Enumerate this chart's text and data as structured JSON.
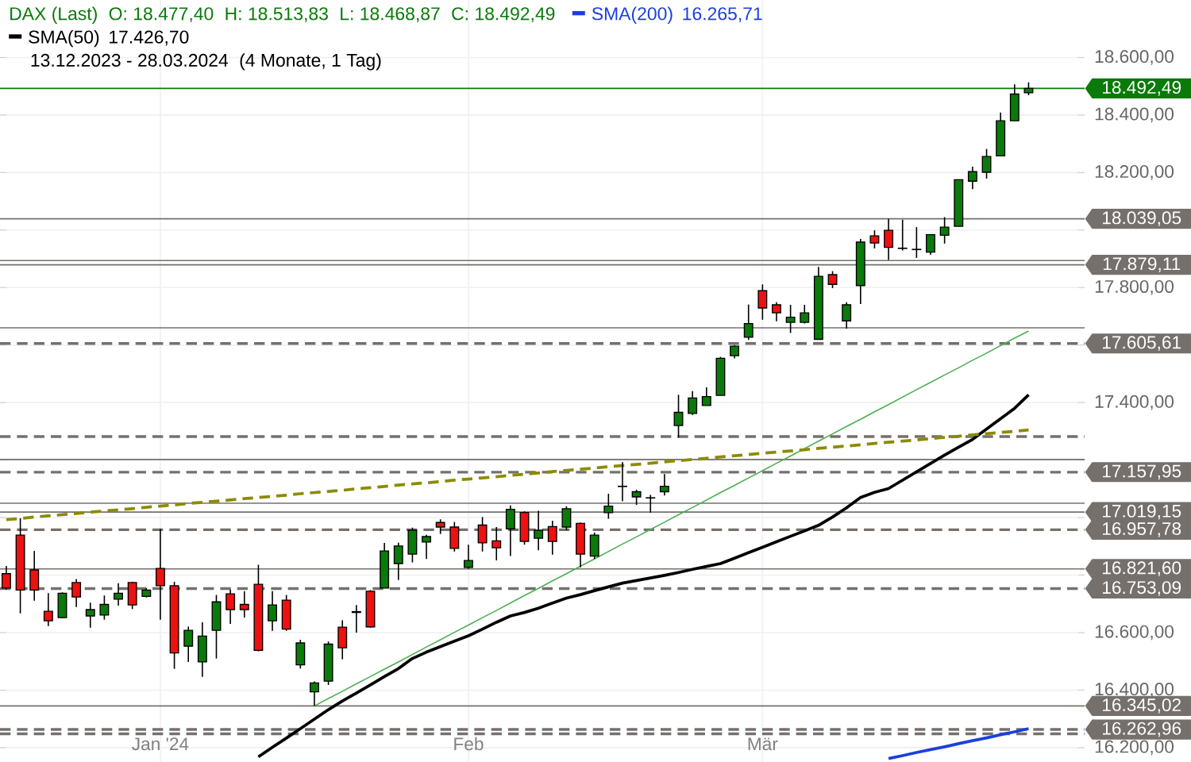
{
  "chart_data": {
    "type": "candlestick",
    "title": "DAX (Last)",
    "categories": [
      null,
      null,
      null,
      null,
      null,
      null,
      null,
      null,
      null,
      null,
      null,
      "Jan '24",
      null,
      null,
      null,
      null,
      null,
      null,
      null,
      null,
      null,
      null,
      null,
      null,
      null,
      null,
      null,
      null,
      null,
      null,
      null,
      null,
      null,
      "Feb",
      null,
      null,
      null,
      null,
      null,
      null,
      null,
      null,
      null,
      null,
      null,
      null,
      null,
      null,
      null,
      null,
      null,
      null,
      null,
      null,
      "Mär",
      null,
      null,
      null,
      null,
      null,
      null,
      null,
      null,
      null,
      null,
      null,
      null,
      null,
      null,
      null,
      null,
      null,
      null,
      null
    ],
    "ohlc": [
      [
        16805,
        16832,
        16750,
        16755
      ],
      [
        16939,
        16998,
        16667,
        16748
      ],
      [
        16818,
        16884,
        16711,
        16748
      ],
      [
        16674,
        16737,
        16623,
        16641
      ],
      [
        16652,
        16740,
        16650,
        16737
      ],
      [
        16774,
        16786,
        16689,
        16724
      ],
      [
        16658,
        16704,
        16617,
        16680
      ],
      [
        16661,
        16729,
        16645,
        16698
      ],
      [
        16716,
        16772,
        16694,
        16737
      ],
      [
        16774,
        16777,
        16682,
        16696
      ],
      [
        16726,
        16755,
        16722,
        16748
      ],
      [
        16823,
        16961,
        16645,
        16763
      ],
      [
        16763,
        16777,
        16474,
        16529
      ],
      [
        16553,
        16621,
        16498,
        16608
      ],
      [
        16498,
        16636,
        16446,
        16588
      ],
      [
        16608,
        16731,
        16510,
        16707
      ],
      [
        16735,
        16750,
        16630,
        16680
      ],
      [
        16698,
        16744,
        16652,
        16680
      ],
      [
        16768,
        16836,
        16535,
        16538
      ],
      [
        16641,
        16744,
        16606,
        16696
      ],
      [
        16713,
        16731,
        16606,
        16612
      ],
      [
        16488,
        16575,
        16475,
        16564
      ],
      [
        16394,
        16430,
        16345,
        16425
      ],
      [
        16431,
        16569,
        16418,
        16560
      ],
      [
        16619,
        16643,
        16507,
        16547
      ],
      [
        16670,
        16696,
        16600,
        16673
      ],
      [
        16744,
        16748,
        16617,
        16620
      ],
      [
        16755,
        16912,
        16755,
        16884
      ],
      [
        16840,
        16913,
        16783,
        16901
      ],
      [
        16873,
        16965,
        16844,
        16956
      ],
      [
        16915,
        16940,
        16856,
        16934
      ],
      [
        16983,
        16994,
        16943,
        16967
      ],
      [
        16967,
        16985,
        16882,
        16893
      ],
      [
        16827,
        16906,
        16822,
        16851
      ],
      [
        16974,
        17002,
        16882,
        16912
      ],
      [
        16919,
        16967,
        16851,
        16895
      ],
      [
        16961,
        17042,
        16866,
        17029
      ],
      [
        17018,
        17022,
        16906,
        16917
      ],
      [
        16928,
        17024,
        16886,
        16956
      ],
      [
        16969,
        16989,
        16871,
        16917
      ],
      [
        16967,
        17039,
        16956,
        17031
      ],
      [
        16980,
        16983,
        16827,
        16873
      ],
      [
        16866,
        16948,
        16856,
        16939
      ],
      [
        17017,
        17083,
        16996,
        17040
      ],
      [
        17109,
        17193,
        17057,
        17108
      ],
      [
        17072,
        17097,
        17044,
        17090
      ],
      [
        17068,
        17079,
        17017,
        17069
      ],
      [
        17090,
        17151,
        17077,
        17109
      ],
      [
        17320,
        17427,
        17278,
        17366
      ],
      [
        17362,
        17440,
        17357,
        17416
      ],
      [
        17390,
        17453,
        17390,
        17421
      ],
      [
        17425,
        17559,
        17425,
        17554
      ],
      [
        17563,
        17600,
        17554,
        17596
      ],
      [
        17627,
        17741,
        17618,
        17675
      ],
      [
        17789,
        17811,
        17688,
        17729
      ],
      [
        17740,
        17749,
        17683,
        17712
      ],
      [
        17679,
        17740,
        17642,
        17697
      ],
      [
        17679,
        17740,
        17675,
        17712
      ],
      [
        17620,
        17872,
        17620,
        17839
      ],
      [
        17845,
        17857,
        17798,
        17811
      ],
      [
        17684,
        17749,
        17657,
        17740
      ],
      [
        17807,
        17969,
        17743,
        17958
      ],
      [
        17980,
        17999,
        17936,
        17955
      ],
      [
        17999,
        18039,
        17896,
        17940
      ],
      [
        17936,
        18036,
        17929,
        17937
      ],
      [
        17933,
        18010,
        17903,
        17932
      ],
      [
        17923,
        17984,
        17914,
        17984
      ],
      [
        17982,
        18045,
        17953,
        18010
      ],
      [
        18013,
        18175,
        18013,
        18175
      ],
      [
        18170,
        18220,
        18142,
        18203
      ],
      [
        18201,
        18282,
        18179,
        18256
      ],
      [
        18258,
        18409,
        18258,
        18380
      ],
      [
        18380,
        18507,
        18380,
        18473
      ],
      [
        18477.4,
        18513.83,
        18468.87,
        18492.49
      ]
    ],
    "series": [
      {
        "name": "SMA(50)",
        "type": "line",
        "color": "#000000",
        "values": [
          null,
          null,
          null,
          null,
          null,
          null,
          null,
          null,
          null,
          null,
          null,
          null,
          null,
          null,
          null,
          null,
          null,
          null,
          16168,
          16201,
          16233,
          16266,
          16299,
          16332,
          16362,
          16390,
          16418,
          16447,
          16475,
          16510,
          16532,
          16551,
          16570,
          16589,
          16612,
          16636,
          16658,
          16670,
          16685,
          16703,
          16720,
          16732,
          16746,
          16759,
          16772,
          16781,
          16790,
          16799,
          16809,
          16820,
          16830,
          16840,
          16859,
          16878,
          16897,
          16916,
          16935,
          16954,
          16973,
          17002,
          17034,
          17070,
          17088,
          17101,
          17130,
          17159,
          17188,
          17217,
          17245,
          17272,
          17308,
          17344,
          17380,
          17427
        ]
      },
      {
        "name": "SMA(200)",
        "type": "line",
        "color": "#1a3fe0",
        "values": [
          null,
          null,
          null,
          null,
          null,
          null,
          null,
          null,
          null,
          null,
          null,
          null,
          null,
          null,
          null,
          null,
          null,
          null,
          null,
          null,
          null,
          null,
          null,
          null,
          null,
          null,
          null,
          null,
          null,
          null,
          null,
          null,
          null,
          null,
          null,
          null,
          null,
          null,
          null,
          null,
          null,
          null,
          null,
          null,
          null,
          null,
          null,
          null,
          null,
          null,
          null,
          null,
          null,
          null,
          null,
          null,
          null,
          null,
          null,
          null,
          null,
          null,
          null,
          16162,
          16172,
          16183,
          16193,
          16203,
          16214,
          16224,
          16234,
          16245,
          16255,
          16266
        ]
      },
      {
        "type": "line",
        "color": "#4caf50",
        "values": [
          null,
          null,
          null,
          null,
          null,
          null,
          null,
          null,
          null,
          null,
          null,
          null,
          null,
          null,
          null,
          null,
          null,
          null,
          null,
          null,
          null,
          null,
          16345,
          16371,
          16396,
          16422,
          16447,
          16473,
          16498,
          16524,
          16550,
          16575,
          16601,
          16626,
          16652,
          16677,
          16703,
          16729,
          16754,
          16780,
          16805,
          16831,
          16856,
          16882,
          16908,
          16933,
          16959,
          16984,
          17010,
          17035,
          17061,
          17087,
          17112,
          17138,
          17163,
          17189,
          17214,
          17240,
          17266,
          17291,
          17317,
          17342,
          17368,
          17393,
          17419,
          17445,
          17470,
          17496,
          17521,
          17547,
          17572,
          17598,
          17624,
          17649
        ]
      },
      {
        "type": "line",
        "color": "#8b8b00",
        "line_style": "dashed",
        "values": [
          16993,
          16997,
          17002,
          17006,
          17010,
          17014,
          17019,
          17023,
          17027,
          17031,
          17036,
          17040,
          17044,
          17049,
          17053,
          17057,
          17061,
          17066,
          17070,
          17074,
          17078,
          17083,
          17087,
          17091,
          17095,
          17100,
          17104,
          17108,
          17113,
          17117,
          17121,
          17125,
          17130,
          17134,
          17138,
          17142,
          17147,
          17151,
          17155,
          17160,
          17164,
          17168,
          17172,
          17177,
          17181,
          17185,
          17189,
          17194,
          17198,
          17202,
          17206,
          17211,
          17215,
          17219,
          17224,
          17228,
          17232,
          17236,
          17241,
          17245,
          17249,
          17253,
          17258,
          17262,
          17266,
          17270,
          17275,
          17279,
          17283,
          17288,
          17292,
          17296,
          17300,
          17305
        ]
      }
    ],
    "ylim": [
      16150,
      18800
    ],
    "yticks": [
      {
        "value": 16200,
        "label": "16.200,00"
      },
      {
        "value": 16400,
        "label": "16.400,00"
      },
      {
        "value": 16600,
        "label": "16.600,00"
      },
      {
        "value": 16800,
        "label": null
      },
      {
        "value": 17000,
        "label": null
      },
      {
        "value": 17200,
        "label": null
      },
      {
        "value": 17400,
        "label": "17.400,00"
      },
      {
        "value": 17600,
        "label": null
      },
      {
        "value": 17800,
        "label": "17.800,00"
      },
      {
        "value": 18000,
        "label": null
      },
      {
        "value": 18200,
        "label": "18.200,00"
      },
      {
        "value": 18400,
        "label": "18.400,00"
      },
      {
        "value": 18600,
        "label": "18.600,00"
      }
    ],
    "grid": true,
    "legend": "top left",
    "ref_lines": [
      {
        "axis": "y",
        "value": 18492.49,
        "label": "18.492,49",
        "color": "#0a7a0a",
        "line_style": "solid"
      },
      {
        "axis": "y",
        "value": 18039.05,
        "label": "18.039,05",
        "color": "#75706c",
        "line_style": "solid"
      },
      {
        "axis": "y",
        "value": 17894,
        "label": null,
        "color": "#75706c",
        "line_style": "solid"
      },
      {
        "axis": "y",
        "value": 17879.11,
        "label": "17.879,11",
        "color": "#75706c",
        "line_style": "solid"
      },
      {
        "axis": "y",
        "value": 17660,
        "label": null,
        "color": "#75706c",
        "line_style": "solid"
      },
      {
        "axis": "y",
        "value": 17605.61,
        "label": "17.605,61",
        "color": "#75706c",
        "line_style": "dashed"
      },
      {
        "axis": "y",
        "value": 17282,
        "label": null,
        "color": "#75706c",
        "line_style": "dashed"
      },
      {
        "axis": "y",
        "value": 17202,
        "label": null,
        "color": "#75706c",
        "line_style": "solid"
      },
      {
        "axis": "y",
        "value": 17157.95,
        "label": "17.157,95",
        "color": "#75706c",
        "line_style": "dashed"
      },
      {
        "axis": "y",
        "value": 17050,
        "label": null,
        "color": "#75706c",
        "line_style": "solid"
      },
      {
        "axis": "y",
        "value": 17019.15,
        "label": "17.019,15",
        "color": "#75706c",
        "line_style": "solid"
      },
      {
        "axis": "y",
        "value": 16957.78,
        "label": "16.957,78",
        "color": "#75706c",
        "line_style": "dashed"
      },
      {
        "axis": "y",
        "value": 16821.6,
        "label": "16.821,60",
        "color": "#75706c",
        "line_style": "solid"
      },
      {
        "axis": "y",
        "value": 16753.09,
        "label": "16.753,09",
        "color": "#75706c",
        "line_style": "dashed"
      },
      {
        "axis": "y",
        "value": 16345.02,
        "label": "16.345,02",
        "color": "#75706c",
        "line_style": "solid"
      },
      {
        "axis": "y",
        "value": 16262.96,
        "label": "16.262,96",
        "color": "#75706c",
        "line_style": "dashed"
      },
      {
        "axis": "y",
        "value": 16248,
        "label": null,
        "color": "#75706c",
        "line_style": "dashed"
      }
    ],
    "annotations": [
      "O: 18.477,40",
      "H: 18.513,83",
      "L: 18.468,87",
      "C: 18.492,49",
      "17.426,70",
      "16.265,71",
      "13.12.2023 - 28.03.2024",
      "(4 Monate, 1 Tag)"
    ]
  }
}
